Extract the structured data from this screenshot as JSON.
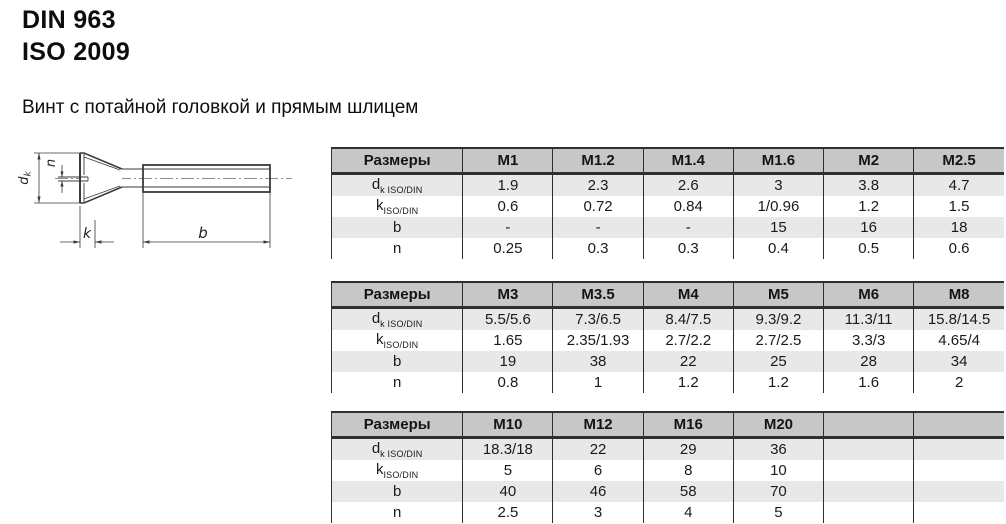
{
  "header": {
    "standard_lines": [
      "DIN 963",
      "ISO 2009"
    ],
    "subtitle": "Винт с потайной головкой и прямым шлицем"
  },
  "drawing": {
    "kind": "countersunk-slotted-screw-side-view",
    "dim_labels": {
      "dk_main": "d",
      "dk_sub": "k",
      "n": "n",
      "k": "k",
      "b": "b"
    }
  },
  "tables": [
    {
      "header": [
        "Размеры",
        "M1",
        "M1.2",
        "M1.4",
        "M1.6",
        "M2",
        "M2.5"
      ],
      "rows": [
        {
          "label_main": "d",
          "label_sub": "k ISO/DIN",
          "values": [
            "1.9",
            "2.3",
            "2.6",
            "3",
            "3.8",
            "4.7"
          ]
        },
        {
          "label_main": "k",
          "label_sub": "ISO/DIN",
          "values": [
            "0.6",
            "0.72",
            "0.84",
            "1/0.96",
            "1.2",
            "1.5"
          ]
        },
        {
          "label_main": "b",
          "label_sub": "",
          "values": [
            "-",
            "-",
            "-",
            "15",
            "16",
            "18"
          ]
        },
        {
          "label_main": "n",
          "label_sub": "",
          "values": [
            "0.25",
            "0.3",
            "0.3",
            "0.4",
            "0.5",
            "0.6"
          ]
        }
      ]
    },
    {
      "header": [
        "Размеры",
        "M3",
        "M3.5",
        "M4",
        "M5",
        "M6",
        "M8"
      ],
      "rows": [
        {
          "label_main": "d",
          "label_sub": "k ISO/DIN",
          "values": [
            "5.5/5.6",
            "7.3/6.5",
            "8.4/7.5",
            "9.3/9.2",
            "11.3/11",
            "15.8/14.5"
          ]
        },
        {
          "label_main": "k",
          "label_sub": "ISO/DIN",
          "values": [
            "1.65",
            "2.35/1.93",
            "2.7/2.2",
            "2.7/2.5",
            "3.3/3",
            "4.65/4"
          ]
        },
        {
          "label_main": "b",
          "label_sub": "",
          "values": [
            "19",
            "38",
            "22",
            "25",
            "28",
            "34"
          ]
        },
        {
          "label_main": "n",
          "label_sub": "",
          "values": [
            "0.8",
            "1",
            "1.2",
            "1.2",
            "1.6",
            "2"
          ]
        }
      ]
    },
    {
      "header": [
        "Размеры",
        "M10",
        "M12",
        "M16",
        "M20",
        "",
        ""
      ],
      "rows": [
        {
          "label_main": "d",
          "label_sub": "k ISO/DIN",
          "values": [
            "18.3/18",
            "22",
            "29",
            "36",
            "",
            ""
          ]
        },
        {
          "label_main": "k",
          "label_sub": "ISO/DIN",
          "values": [
            "5",
            "6",
            "8",
            "10",
            "",
            ""
          ]
        },
        {
          "label_main": "b",
          "label_sub": "",
          "values": [
            "40",
            "46",
            "58",
            "70",
            "",
            ""
          ]
        },
        {
          "label_main": "n",
          "label_sub": "",
          "values": [
            "2.5",
            "3",
            "4",
            "5",
            "",
            ""
          ]
        }
      ]
    }
  ],
  "colors": {
    "header_bg": "#c7c7c7",
    "row_shaded_bg": "#e8e8e8",
    "row_plain_bg": "#ffffff",
    "border": "#2f2f2f",
    "text": "#1a1a1a"
  }
}
